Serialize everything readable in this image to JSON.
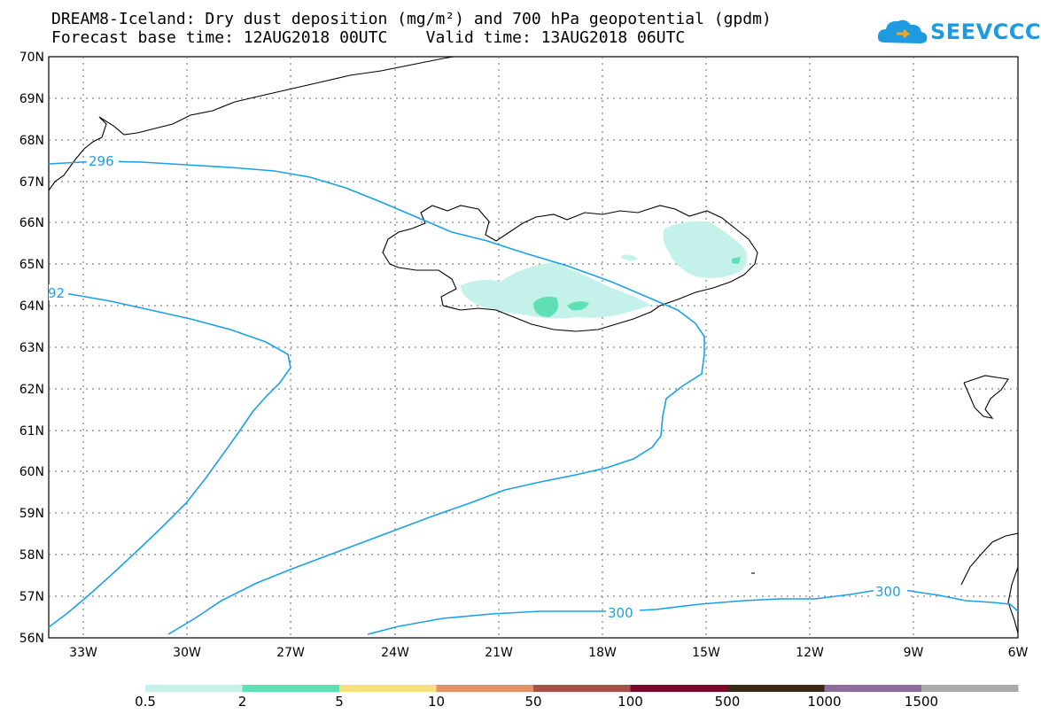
{
  "header": {
    "title_line1": "DREAM8-Iceland: Dry dust deposition (mg/m²) and 700 hPa geopotential (gpdm)",
    "title_line2": "Forecast base time: 12AUG2018 00UTC    Valid time: 13AUG2018 06UTC",
    "logo_text": "SEEVCCC"
  },
  "map": {
    "lat_labels": [
      "70N",
      "69N",
      "68N",
      "67N",
      "66N",
      "65N",
      "64N",
      "63N",
      "62N",
      "61N",
      "60N",
      "59N",
      "58N",
      "57N",
      "56N"
    ],
    "lon_labels": [
      "33W",
      "30W",
      "27W",
      "24W",
      "21W",
      "18W",
      "15W",
      "12W",
      "9W",
      "6W"
    ],
    "lat_range": [
      56,
      70
    ],
    "lon_range": [
      -34.3,
      -6
    ],
    "contour_color": "#1aa0e8",
    "contour_labels": [
      "296",
      "92",
      "300",
      "300"
    ]
  },
  "legend": {
    "labels": [
      "0.5",
      "2",
      "5",
      "10",
      "50",
      "100",
      "500",
      "1000",
      "1500"
    ],
    "colors": [
      "#c4f2ea",
      "#5fdfb4",
      "#f6e27a",
      "#e8906c",
      "#a8504a",
      "#7a0a28",
      "#3a2816",
      "#8e6c9c",
      "#aaaaaa"
    ]
  }
}
